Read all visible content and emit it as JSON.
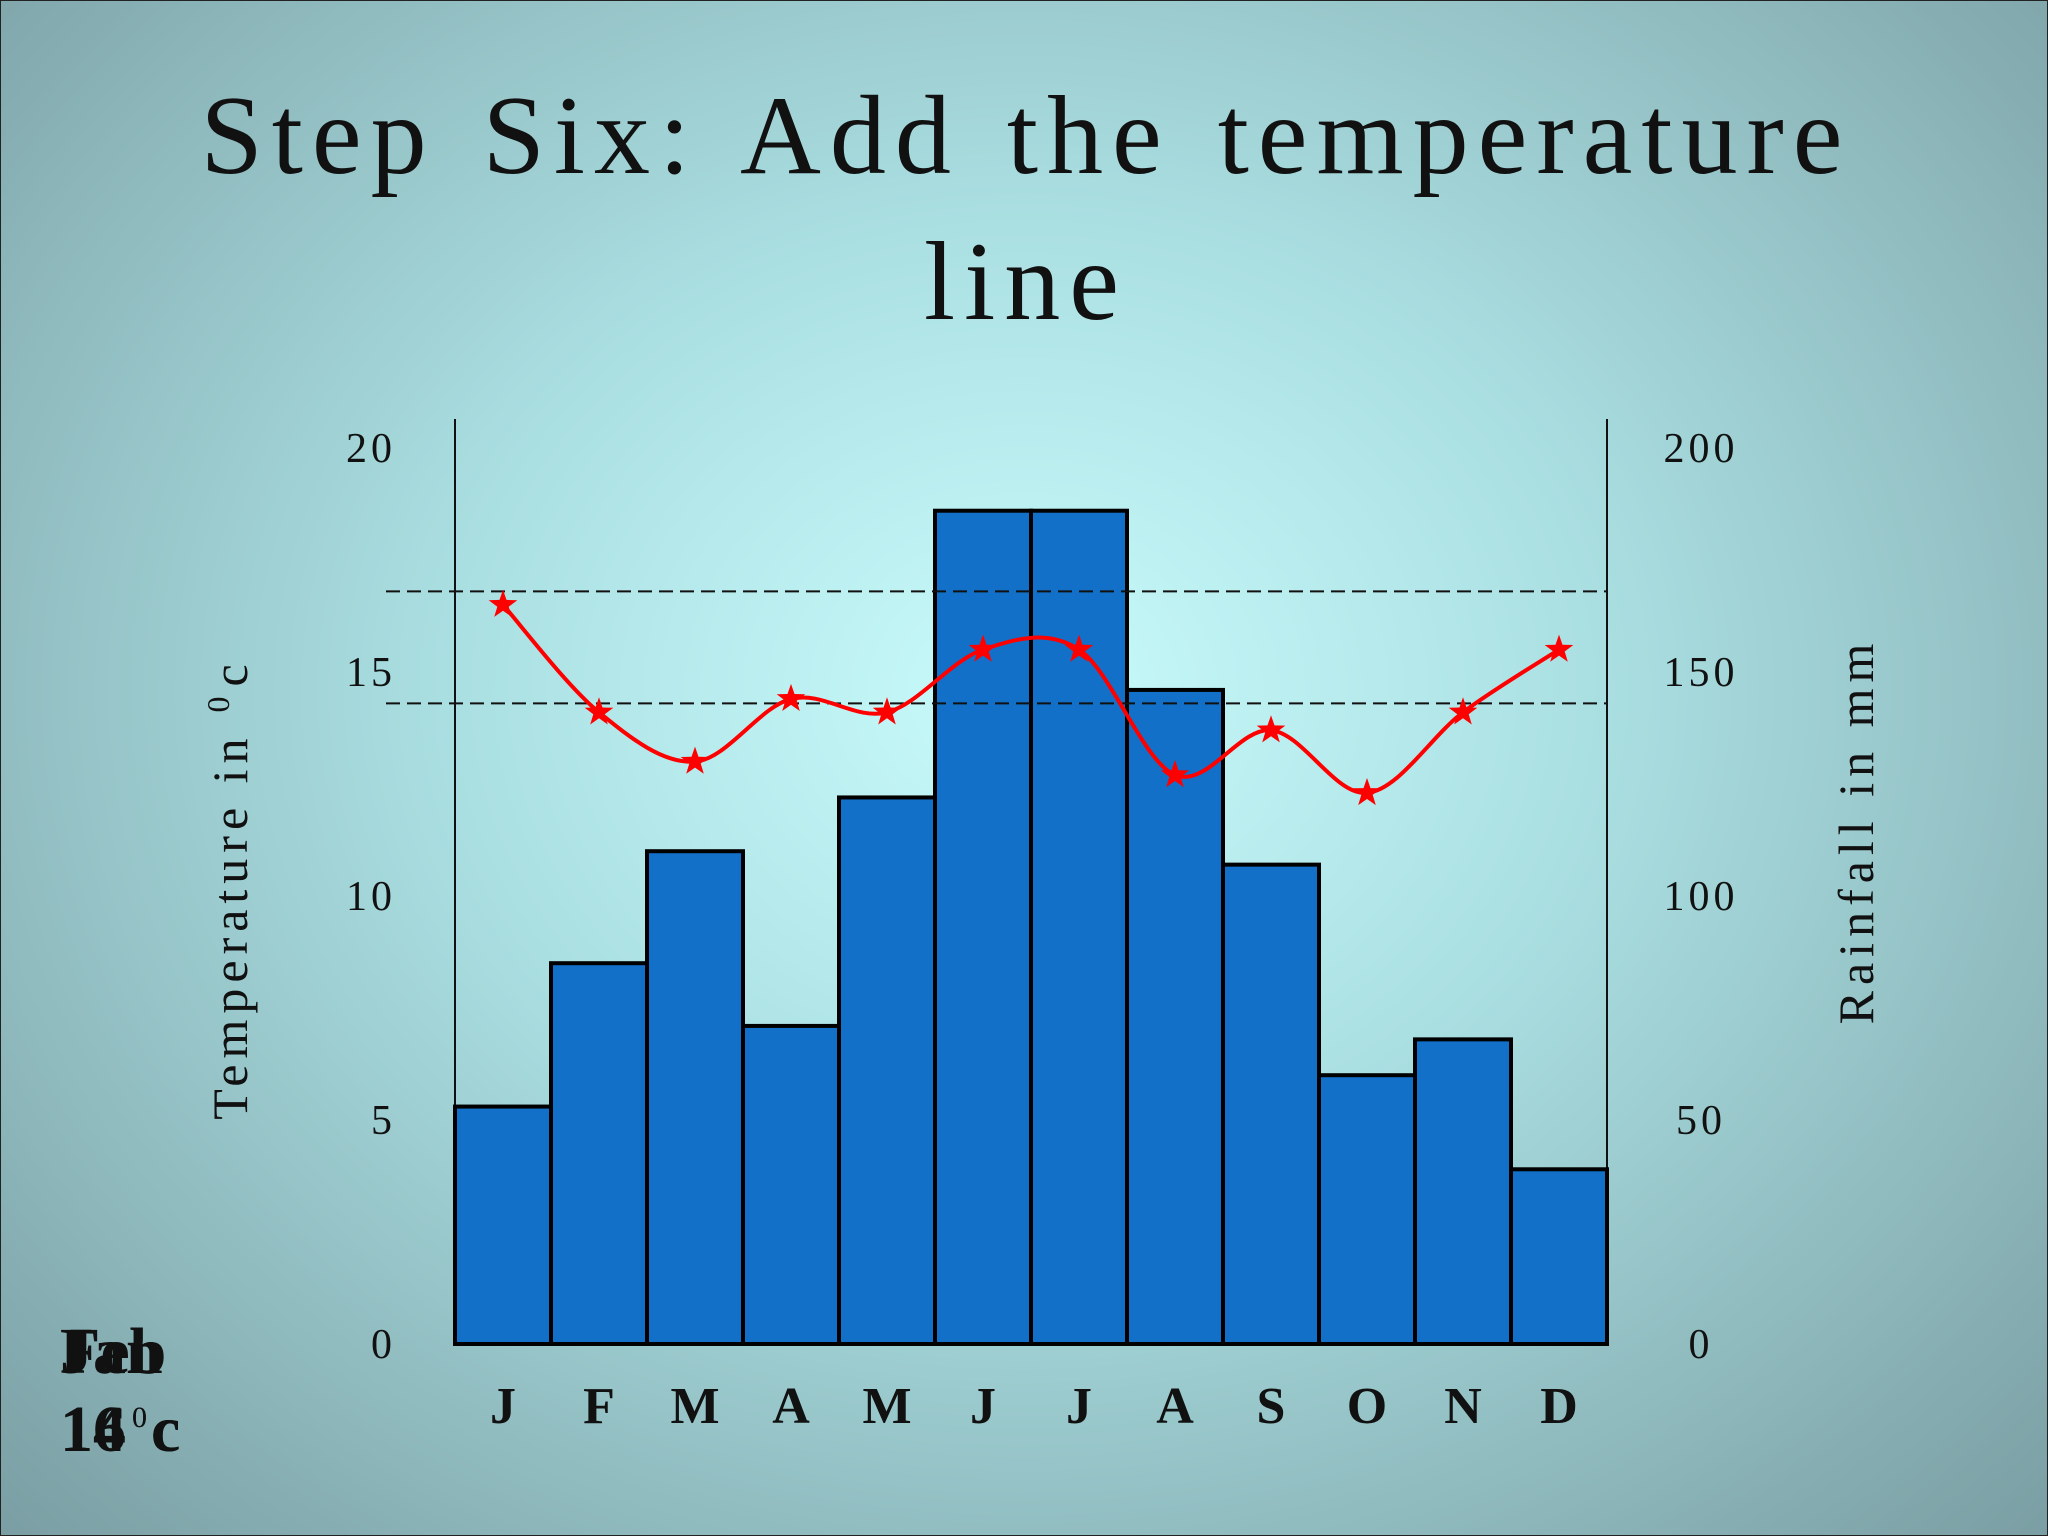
{
  "chart_data": {
    "type": "bar_line",
    "title": "Step Six: Add the temperature line",
    "ylabel": "Temperature in",
    "ylabel_degree": "0",
    "ylabel_unit": "c",
    "y2label": "Rainfall in mm",
    "categories": [
      "J",
      "F",
      "M",
      "A",
      "M",
      "J",
      "J",
      "A",
      "S",
      "O",
      "N",
      "D"
    ],
    "rainfall": {
      "color": "#1270c8",
      "axis": "y2",
      "values": [
        53,
        85,
        110,
        71,
        122,
        186,
        186,
        146,
        107,
        60,
        68,
        39
      ]
    },
    "temperature": {
      "color": "#ff0000",
      "values": [
        16.5,
        14.1,
        13.0,
        14.4,
        14.1,
        15.5,
        15.5,
        12.7,
        13.7,
        12.3,
        14.1,
        15.5
      ]
    },
    "reference_lines": [
      16.8,
      14.3
    ],
    "ylim": [
      0,
      20
    ],
    "yticks": [
      0,
      5,
      10,
      15,
      20
    ],
    "y2lim": [
      0,
      200
    ],
    "y2ticks": [
      0,
      50,
      100,
      150,
      200
    ],
    "annotations": [
      {
        "month": "Jan",
        "value": "16"
      },
      {
        "month": "Feb",
        "value": "14"
      }
    ],
    "annotation_degree": "0",
    "annotation_unit": "c"
  }
}
